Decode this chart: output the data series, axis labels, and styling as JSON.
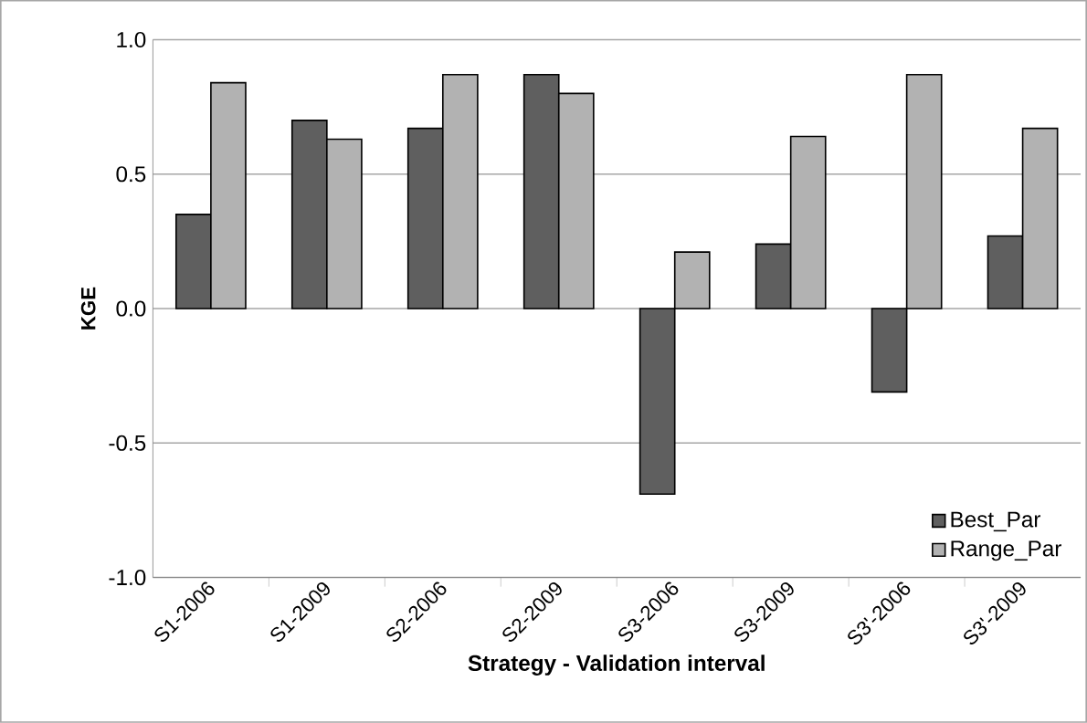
{
  "chart_data": {
    "type": "bar",
    "xlabel": "Strategy - Validation interval",
    "ylabel": "KGE",
    "categories": [
      "S1-2006",
      "S1-2009",
      "S2-2006",
      "S2-2009",
      "S3-2006",
      "S3-2009",
      "S3'-2006",
      "S3'-2009"
    ],
    "series": [
      {
        "name": "Best_Par",
        "color": "#5f5f5f",
        "values": [
          0.35,
          0.7,
          0.67,
          0.87,
          -0.69,
          0.24,
          -0.31,
          0.27
        ]
      },
      {
        "name": "Range_Par",
        "color": "#b2b2b2",
        "values": [
          0.84,
          0.63,
          0.87,
          0.8,
          0.21,
          0.64,
          0.87,
          0.67
        ]
      }
    ],
    "ylim": [
      -1.0,
      1.0
    ],
    "yticks": [
      {
        "value": -1.0,
        "label": "-1.0"
      },
      {
        "value": -0.5,
        "label": "-0.5"
      },
      {
        "value": 0.0,
        "label": "0.0"
      },
      {
        "value": 0.5,
        "label": "0.5"
      },
      {
        "value": 1.0,
        "label": "1.0"
      }
    ],
    "grid": "y",
    "legend": "bottom right"
  }
}
